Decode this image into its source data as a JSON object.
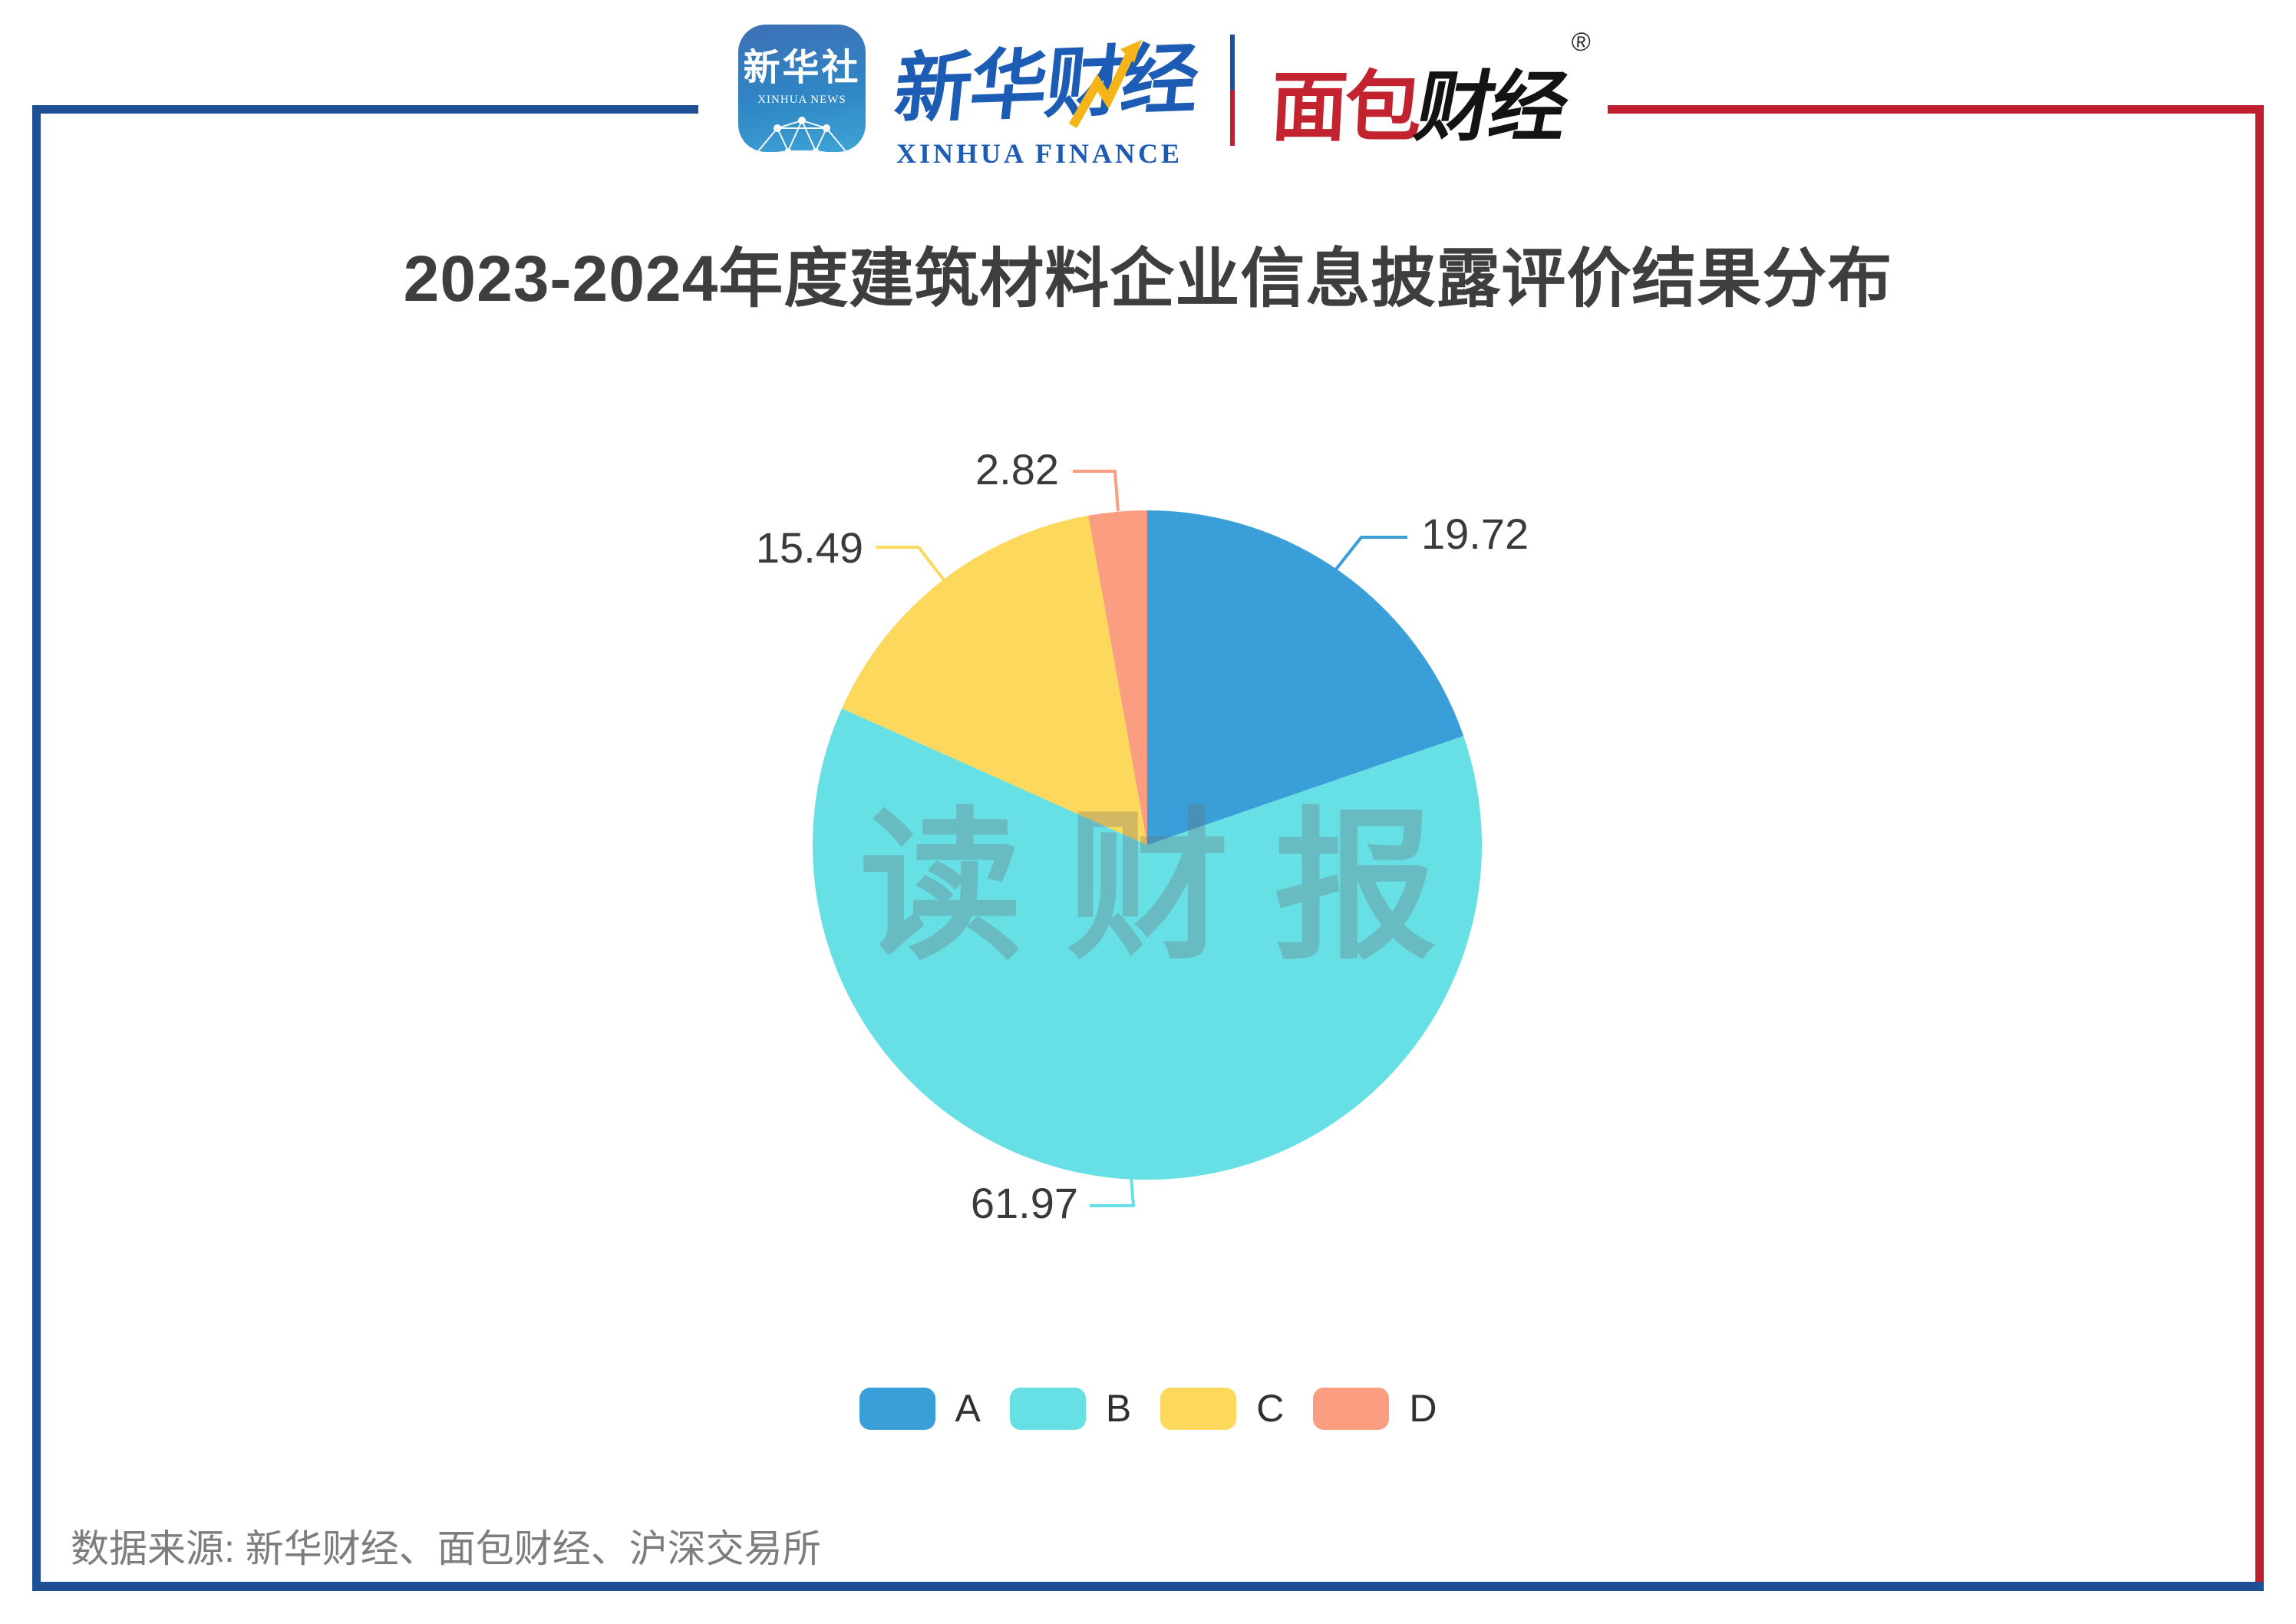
{
  "header": {
    "xinhua_news_icon": {
      "cn": "新华社",
      "en": "XINHUA NEWS"
    },
    "xinhua_finance_logo": {
      "cn": "新华财经",
      "en": "XINHUA FINANCE"
    },
    "mianbao_logo": {
      "cn_red": "面包",
      "cn_black": "财经",
      "registered_mark": "®"
    }
  },
  "title": "2023-2024年度建筑材料企业信息披露评价结果分布",
  "watermark": "读财报",
  "source": "数据来源: 新华财经、面包财经、沪深交易所",
  "frame": {
    "blue": "#1f4f94",
    "red": "#bf1f2d"
  },
  "chart_data": {
    "type": "pie",
    "title": "2023-2024年度建筑材料企业信息披露评价结果分布",
    "unit": "%",
    "start_angle": "12 o'clock",
    "direction": "clockwise",
    "legend_position": "bottom",
    "categories": [
      "A",
      "B",
      "C",
      "D"
    ],
    "values": [
      19.72,
      61.97,
      15.49,
      2.82
    ],
    "slices": [
      {
        "name": "A",
        "value": 19.72,
        "color": "#3a9fd8"
      },
      {
        "name": "B",
        "value": 61.97,
        "color": "#66dfe5"
      },
      {
        "name": "C",
        "value": 15.49,
        "color": "#fcd95c"
      },
      {
        "name": "D",
        "value": 2.82,
        "color": "#fb9d80"
      }
    ]
  }
}
